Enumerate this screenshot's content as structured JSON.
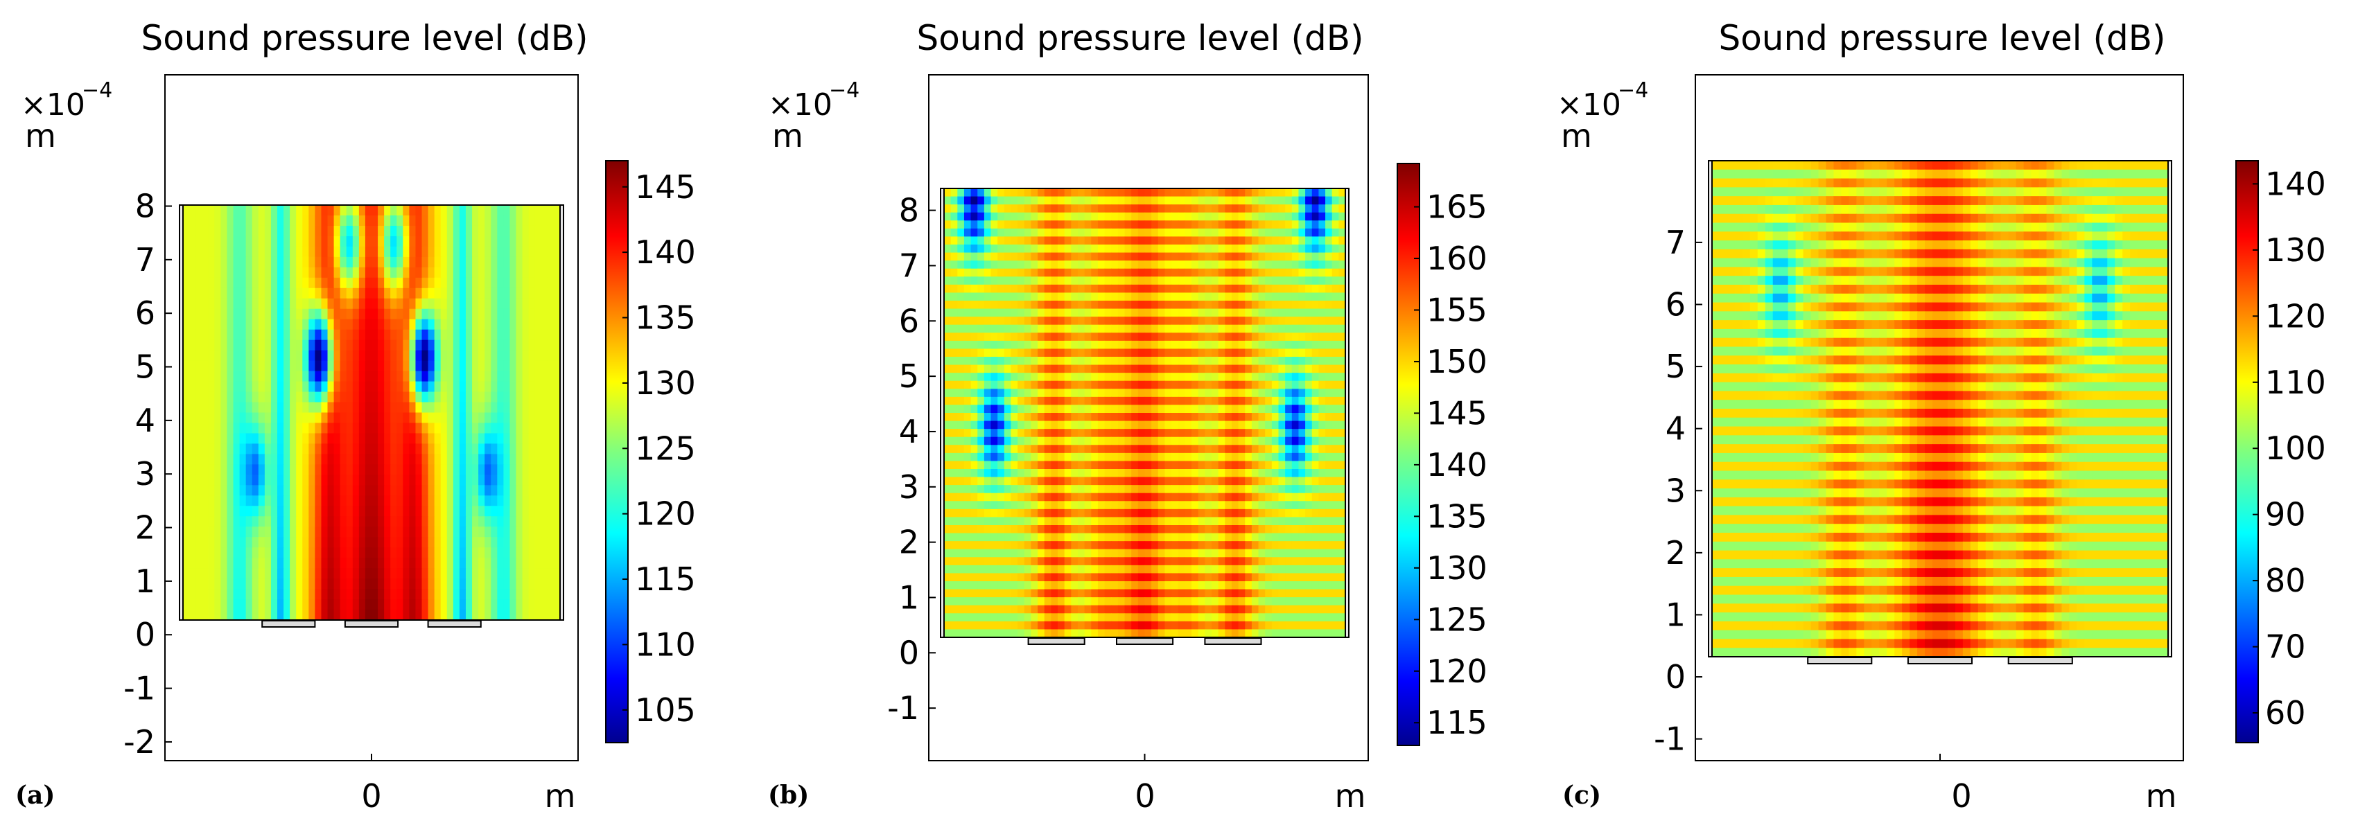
{
  "chart_data": [
    {
      "type": "heatmap",
      "panel_label": "(a)",
      "title": "Sound pressure level (dB)",
      "y_unit": "m",
      "y_multiplier_base": "×10",
      "y_multiplier_exp": "−4",
      "x_unit": "m",
      "x_ticks": [
        "0"
      ],
      "y_ticks": [
        "8",
        "7",
        "6",
        "5",
        "4",
        "3",
        "2",
        "1",
        "0",
        "-1",
        "-2"
      ],
      "y_tick_values": [
        8,
        7,
        6,
        5,
        4,
        3,
        2,
        1,
        0,
        -1,
        -2
      ],
      "ylim": [
        -2.35,
        10.45
      ],
      "domain_y": [
        0.05,
        8.05
      ],
      "colorbar_ticks": [
        "145",
        "140",
        "135",
        "130",
        "125",
        "120",
        "115",
        "110",
        "105"
      ],
      "colorbar_values": [
        145,
        140,
        135,
        130,
        125,
        120,
        115,
        110,
        105
      ],
      "colorbar_range": [
        102.5,
        147
      ],
      "striped": false,
      "beams": [
        {
          "x": -0.7,
          "width": 0.07,
          "level": 0.38
        },
        {
          "x": -0.48,
          "width": 0.05,
          "level": 0.3
        },
        {
          "x": -0.22,
          "width": 0.1,
          "level": 0.95
        },
        {
          "x": 0.0,
          "width": 0.16,
          "level": 1.0
        },
        {
          "x": 0.22,
          "width": 0.1,
          "level": 0.95
        },
        {
          "x": 0.48,
          "width": 0.05,
          "level": 0.3
        },
        {
          "x": 0.7,
          "width": 0.07,
          "level": 0.38
        }
      ],
      "nodes": [
        {
          "x": -0.28,
          "y": 5.1,
          "level": 0.0
        },
        {
          "x": 0.28,
          "y": 5.1,
          "level": 0.0
        },
        {
          "x": -0.62,
          "y": 2.9,
          "level": 0.22
        },
        {
          "x": 0.62,
          "y": 2.9,
          "level": 0.22
        },
        {
          "x": -0.12,
          "y": 7.3,
          "level": 0.35
        },
        {
          "x": 0.12,
          "y": 7.3,
          "level": 0.35
        }
      ]
    },
    {
      "type": "heatmap",
      "panel_label": "(b)",
      "title": "Sound pressure level (dB)",
      "y_unit": "m",
      "y_multiplier_base": "×10",
      "y_multiplier_exp": "−4",
      "x_unit": "m",
      "x_ticks": [
        "0"
      ],
      "y_ticks": [
        "8",
        "7",
        "6",
        "5",
        "4",
        "3",
        "2",
        "1",
        "0",
        "-1"
      ],
      "y_tick_values": [
        8,
        7,
        6,
        5,
        4,
        3,
        2,
        1,
        0,
        -1
      ],
      "ylim": [
        -1.95,
        10.45
      ],
      "domain_y": [
        0.05,
        8.05
      ],
      "colorbar_ticks": [
        "165",
        "160",
        "155",
        "150",
        "145",
        "140",
        "135",
        "130",
        "125",
        "120",
        "115"
      ],
      "colorbar_values": [
        165,
        160,
        155,
        150,
        145,
        140,
        135,
        130,
        125,
        120,
        115
      ],
      "colorbar_range": [
        112.8,
        169.2
      ],
      "striped": true,
      "beams": [
        {
          "x": -0.45,
          "width": 0.1,
          "level": 0.85
        },
        {
          "x": -0.2,
          "width": 0.12,
          "level": 0.8
        },
        {
          "x": 0.0,
          "width": 0.14,
          "level": 0.9
        },
        {
          "x": 0.2,
          "width": 0.12,
          "level": 0.8
        },
        {
          "x": 0.45,
          "width": 0.1,
          "level": 0.85
        }
      ],
      "nodes": [
        {
          "x": -0.85,
          "y": 7.8,
          "level": 0.15
        },
        {
          "x": 0.85,
          "y": 7.8,
          "level": 0.15
        },
        {
          "x": -0.75,
          "y": 3.8,
          "level": 0.22
        },
        {
          "x": 0.75,
          "y": 3.8,
          "level": 0.22
        }
      ]
    },
    {
      "type": "heatmap",
      "panel_label": "(c)",
      "title": "Sound pressure level (dB)",
      "y_unit": "m",
      "y_multiplier_base": "×10",
      "y_multiplier_exp": "−4",
      "x_unit": "m",
      "x_ticks": [
        "0"
      ],
      "y_ticks": [
        "7",
        "6",
        "5",
        "4",
        "3",
        "2",
        "1",
        "0",
        "-1"
      ],
      "y_tick_values": [
        7,
        6,
        5,
        4,
        3,
        2,
        1,
        0,
        -1
      ],
      "ylim": [
        -1.35,
        9.7
      ],
      "domain_y": [
        0.05,
        8.05
      ],
      "colorbar_ticks": [
        "140",
        "130",
        "120",
        "110",
        "100",
        "90",
        "80",
        "70",
        "60"
      ],
      "colorbar_values": [
        140,
        130,
        120,
        110,
        100,
        90,
        80,
        70,
        60
      ],
      "colorbar_range": [
        55.5,
        143.5
      ],
      "striped": true,
      "beams": [
        {
          "x": -0.42,
          "width": 0.1,
          "level": 0.8
        },
        {
          "x": 0.0,
          "width": 0.22,
          "level": 0.92
        },
        {
          "x": 0.42,
          "width": 0.1,
          "level": 0.8
        }
      ],
      "nodes": [
        {
          "x": -0.7,
          "y": 6.0,
          "level": 0.42
        },
        {
          "x": 0.7,
          "y": 6.0,
          "level": 0.42
        }
      ]
    }
  ]
}
